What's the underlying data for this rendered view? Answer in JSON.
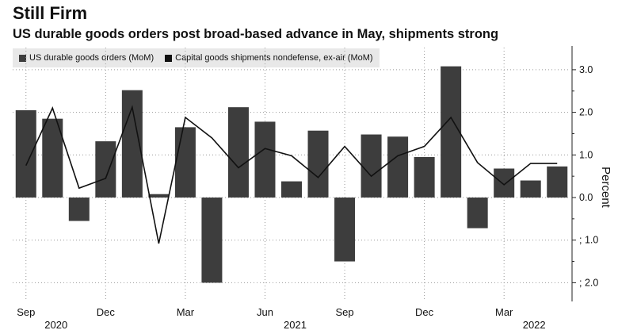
{
  "title": "Still Firm",
  "subtitle": "US durable goods orders post broad-based advance in May, shipments strong",
  "colors": {
    "bar": "#3d3d3d",
    "line": "#111111",
    "grid": "#999999",
    "legend_bg": "#e8e8e8"
  },
  "chart_data": {
    "type": "bar",
    "x_tick_labels": [
      {
        "month": "Sep",
        "year": "2020"
      },
      {
        "month": "Dec",
        "year": ""
      },
      {
        "month": "Mar",
        "year": ""
      },
      {
        "month": "Jun",
        "year": "2021"
      },
      {
        "month": "Sep",
        "year": ""
      },
      {
        "month": "Dec",
        "year": ""
      },
      {
        "month": "Mar",
        "year": "2022"
      }
    ],
    "x": [
      "2020-09",
      "2020-10",
      "2020-11",
      "2020-12",
      "2021-01",
      "2021-02",
      "2021-03",
      "2021-04",
      "2021-05",
      "2021-06",
      "2021-07",
      "2021-08",
      "2021-09",
      "2021-10",
      "2021-11",
      "2021-12",
      "2022-01",
      "2022-02",
      "2022-03",
      "2022-04",
      "2022-05"
    ],
    "series": [
      {
        "name": "US durable goods orders (MoM)",
        "type": "bar",
        "values": [
          2.05,
          1.85,
          -0.55,
          1.32,
          2.52,
          0.08,
          1.65,
          -2.0,
          2.12,
          1.78,
          0.38,
          1.57,
          -1.5,
          1.48,
          1.43,
          0.95,
          3.08,
          -0.72,
          0.68,
          0.4,
          0.73
        ]
      },
      {
        "name": "Capital goods shipments nondefense, ex-air (MoM)",
        "type": "line",
        "values": [
          0.75,
          2.1,
          0.22,
          0.45,
          2.12,
          -1.08,
          1.88,
          1.4,
          0.7,
          1.15,
          0.98,
          0.47,
          1.2,
          0.5,
          0.98,
          1.2,
          1.88,
          0.82,
          0.3,
          0.8,
          0.8
        ]
      }
    ],
    "ylabel": "Percent",
    "ylim": [
      -2.4,
      3.5
    ],
    "y_ticks": [
      3.0,
      2.0,
      1.0,
      0.0,
      -1.0,
      -2.0
    ],
    "y_tick_labels": [
      "3.0",
      "2.0",
      "1.0",
      "0.0",
      "; 1.0",
      "; 2.0"
    ],
    "grid": true,
    "legend_position": "top-left"
  }
}
